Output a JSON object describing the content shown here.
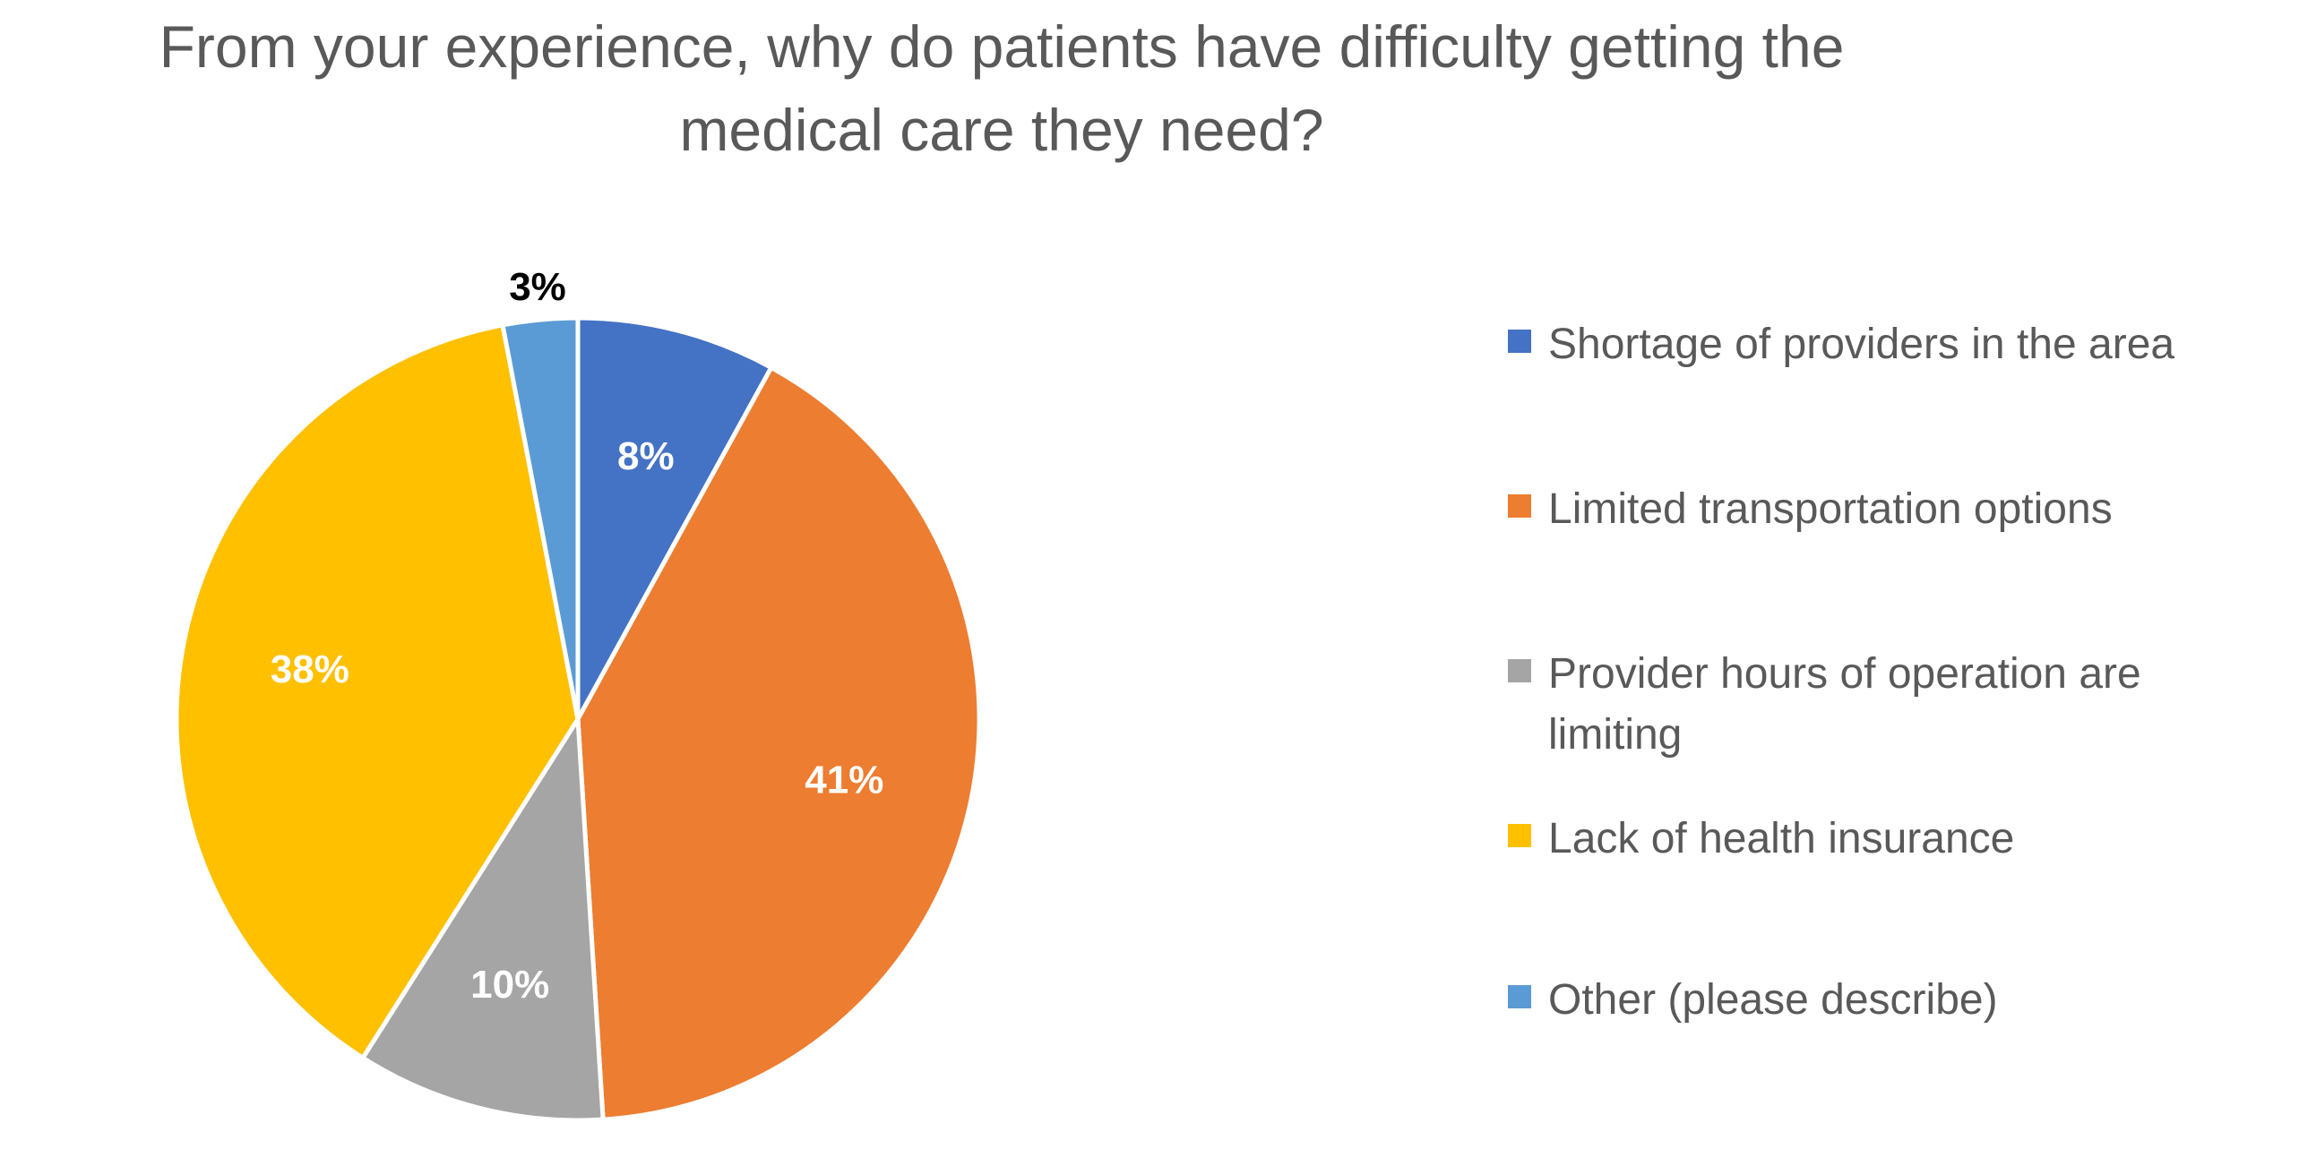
{
  "chart_data": {
    "type": "pie",
    "title_lines": [
      "From your experience, why do patients have difficulty getting the",
      "medical care they need?"
    ],
    "slices": [
      {
        "label_lines": [
          "Shortage of providers in the area"
        ],
        "value": 8,
        "display": "8%",
        "color": "#4472C4",
        "label_color": "#FFFFFF"
      },
      {
        "label_lines": [
          "Limited transportation options"
        ],
        "value": 41,
        "display": "41%",
        "color": "#ED7D31",
        "label_color": "#FFFFFF"
      },
      {
        "label_lines": [
          "Provider hours of operation are",
          "limiting"
        ],
        "value": 10,
        "display": "10%",
        "color": "#A5A5A5",
        "label_color": "#FFFFFF"
      },
      {
        "label_lines": [
          "Lack of health insurance"
        ],
        "value": 38,
        "display": "38%",
        "color": "#FFC000",
        "label_color": "#FFFFFF"
      },
      {
        "label_lines": [
          "Other (please describe)"
        ],
        "value": 3,
        "display": "3%",
        "color": "#5B9BD5",
        "label_color": "#000000"
      }
    ],
    "legend_position": "right",
    "start_angle": "12 o'clock",
    "direction": "clockwise"
  }
}
